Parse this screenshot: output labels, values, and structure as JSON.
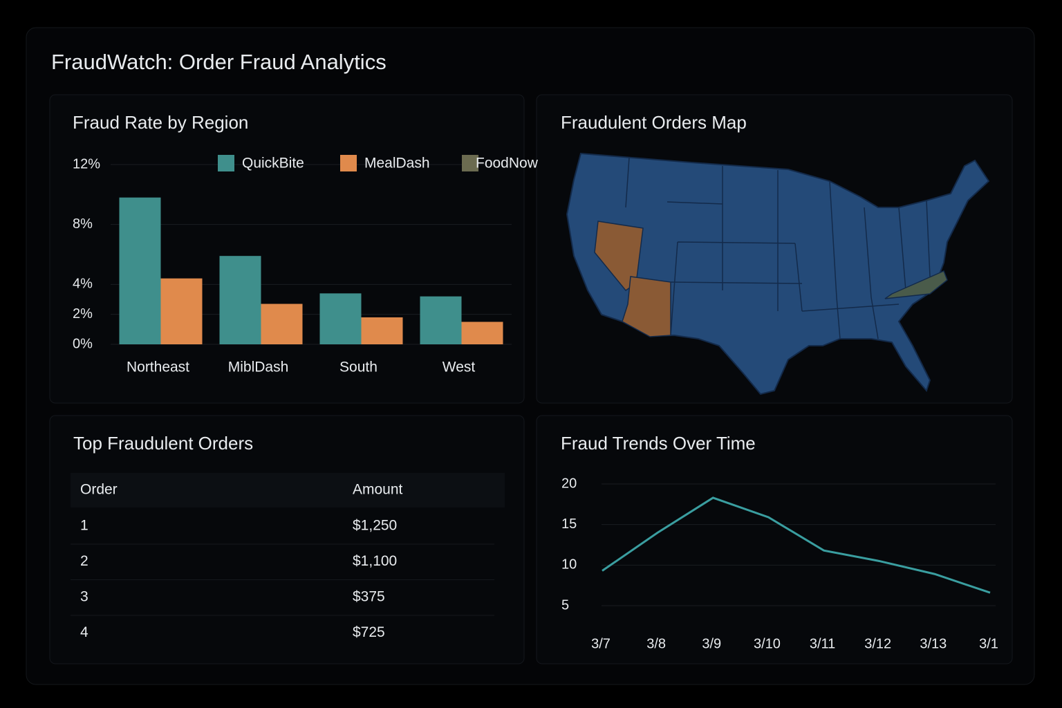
{
  "header": {
    "title": "FraudWatch: Order Fraud Analytics"
  },
  "map": {
    "title": "Fraudulent Orders Map"
  },
  "table": {
    "title": "Top Fraudulent Orders",
    "columns": [
      "Order",
      "Amount"
    ],
    "rows": [
      [
        "1",
        "$1,250"
      ],
      [
        "2",
        "$1,100"
      ],
      [
        "3",
        "$375"
      ],
      [
        "4",
        "$725"
      ]
    ]
  },
  "chart_data": [
    {
      "type": "bar",
      "title": "Fraud Rate by Region",
      "categories": [
        "Northeast",
        "MiblDash",
        "South",
        "West"
      ],
      "series": [
        {
          "name": "QuickBite",
          "color": "#3f8f8c",
          "values": [
            9.8,
            5.9,
            3.4,
            3.2
          ]
        },
        {
          "name": "MealDash",
          "color": "#e08a4c",
          "values": [
            4.4,
            2.7,
            1.8,
            1.5
          ]
        },
        {
          "name": "FoodNow",
          "color": "#6b6b50",
          "values": [
            null,
            null,
            null,
            null
          ]
        }
      ],
      "ylim": [
        0,
        12
      ],
      "yticks": [
        {
          "value": 12,
          "label": "12%"
        },
        {
          "value": 8,
          "label": "8%"
        },
        {
          "value": 4,
          "label": "4%"
        },
        {
          "value": 2,
          "label": "2%"
        },
        {
          "value": 0,
          "label": "0%"
        }
      ],
      "grid": true
    },
    {
      "type": "line",
      "title": "Fraud Trends Over Time",
      "categories": [
        "3/7",
        "3/8",
        "3/9",
        "3/10",
        "3/11",
        "3/12",
        "3/13",
        "3/1"
      ],
      "values": [
        9.3,
        14.0,
        18.3,
        15.9,
        11.8,
        10.5,
        8.9,
        6.6
      ],
      "color": "#3a9ea0",
      "ylim": [
        5,
        20
      ],
      "yticks": [
        20,
        15,
        10,
        5
      ],
      "grid": true
    }
  ]
}
